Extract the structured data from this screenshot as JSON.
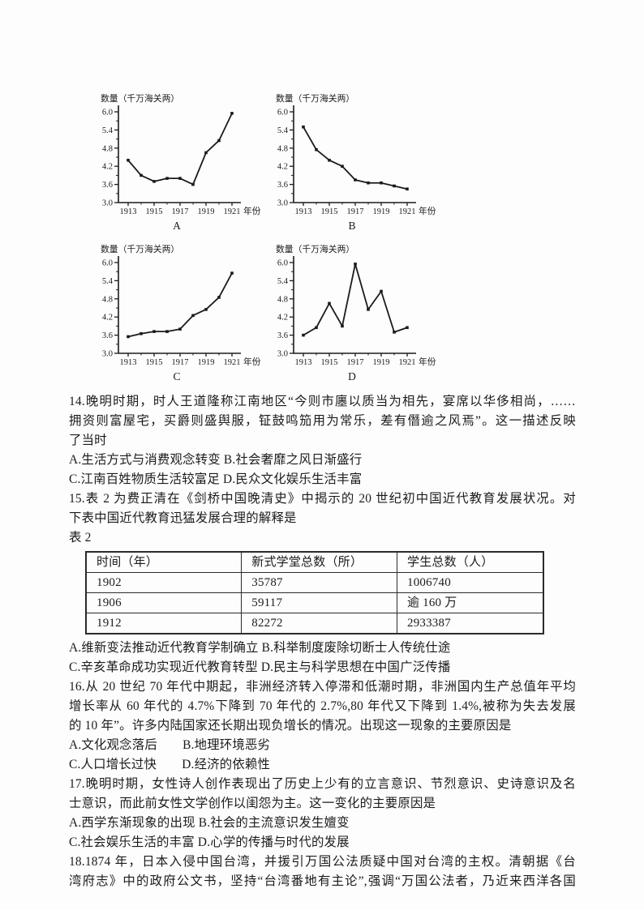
{
  "ink": "#1b1b1b",
  "page_bg": "#fdfdfd",
  "chart_data": [
    {
      "type": "line",
      "label": "A",
      "ylabel": "数量（千万海关两）",
      "xlabel": "年份",
      "x": [
        1913,
        1914,
        1915,
        1916,
        1917,
        1918,
        1919,
        1920,
        1921
      ],
      "values": [
        4.4,
        3.9,
        3.7,
        3.8,
        3.8,
        3.6,
        4.65,
        5.05,
        5.95
      ],
      "ylim": [
        3.0,
        6.0
      ],
      "yticks": [
        3.0,
        3.6,
        4.2,
        4.8,
        5.4,
        6.0
      ],
      "xticks": [
        1913,
        1915,
        1917,
        1919,
        1921
      ],
      "grid": false,
      "legend": "none"
    },
    {
      "type": "line",
      "label": "B",
      "ylabel": "数量（千万海关两）",
      "xlabel": "年份",
      "x": [
        1913,
        1914,
        1915,
        1916,
        1917,
        1918,
        1919,
        1920,
        1921
      ],
      "values": [
        5.5,
        4.75,
        4.4,
        4.2,
        3.75,
        3.65,
        3.65,
        3.55,
        3.45
      ],
      "ylim": [
        3.0,
        6.0
      ],
      "yticks": [
        3.0,
        3.6,
        4.2,
        4.8,
        5.4,
        6.0
      ],
      "xticks": [
        1913,
        1915,
        1917,
        1919,
        1921
      ],
      "grid": false,
      "legend": "none"
    },
    {
      "type": "line",
      "label": "C",
      "ylabel": "数量（千万海关两）",
      "xlabel": "年份",
      "x": [
        1913,
        1914,
        1915,
        1916,
        1917,
        1918,
        1919,
        1920,
        1921
      ],
      "values": [
        3.55,
        3.65,
        3.72,
        3.72,
        3.8,
        4.25,
        4.45,
        4.85,
        5.65
      ],
      "ylim": [
        3.0,
        6.0
      ],
      "yticks": [
        3.0,
        3.6,
        4.2,
        4.8,
        5.4,
        6.0
      ],
      "xticks": [
        1913,
        1915,
        1917,
        1919,
        1921
      ],
      "grid": false,
      "legend": "none"
    },
    {
      "type": "line",
      "label": "D",
      "ylabel": "数量（千万海关两）",
      "xlabel": "年份",
      "x": [
        1913,
        1914,
        1915,
        1916,
        1917,
        1918,
        1919,
        1920,
        1921
      ],
      "values": [
        3.6,
        3.85,
        4.65,
        3.9,
        5.95,
        4.45,
        5.05,
        3.7,
        3.85
      ],
      "ylim": [
        3.0,
        6.0
      ],
      "yticks": [
        3.0,
        3.6,
        4.2,
        4.8,
        5.4,
        6.0
      ],
      "xticks": [
        1913,
        1915,
        1917,
        1919,
        1921
      ],
      "grid": false,
      "legend": "none"
    }
  ],
  "questions": {
    "q14": {
      "stem": [
        "14.晚明时期，时人王道隆称江南地区“今则市廛以质当为相先，宴席以华侈相尚，……",
        "拥资则富屋宅，买爵则盛舆服，钲鼓鸣笳用为常乐，差有僭逾之风焉”。这一描述反映",
        "了当时"
      ],
      "options": [
        "A.生活方式与消费观念转变 B.社会奢靡之风日渐盛行",
        "C.江南百姓物质生活较富足 D.民众文化娱乐生活丰富"
      ]
    },
    "q15": {
      "stem": [
        "15.表 2 为费正清在《剑桥中国晚清史》中揭示的 20 世纪初中国近代教育发展状况。对",
        "下表中国近代教育迅猛发展合理的解释是"
      ],
      "table_caption": "表 2",
      "options": [
        "A.维新变法推动近代教育学制确立 B.科举制度废除切断士人传统仕途",
        "C.辛亥革命成功实现近代教育转型 D.民主与科学思想在中国广泛传播"
      ]
    },
    "q16": {
      "stem": [
        "16.从 20 世纪 70 年代中期起，非洲经济转入停滞和低潮时期，非洲国内生产总值年平均",
        "增长率从 60 年代的 4.7%下降到 70 年代的 2.7%,80 年代又下降到 1.4%,被称为失去发展",
        "的 10 年”。许多内陆国家还长期出现负增长的情况。出现这一现象的主要原因是"
      ],
      "options": [
        "A.文化观念落后　　B.地理环境恶劣",
        "C.人口增长过快　　D.经济的依赖性"
      ]
    },
    "q17": {
      "stem": [
        "17.晚明时期，女性诗人创作表现出了历史上少有的立言意识、节烈意识、史诗意识及名",
        "士意识，而此前女性文学创作以闺怨为主。这一变化的主要原因是"
      ],
      "options": [
        "A.西学东渐现象的出现 B.社会的主流意识发生嬗变",
        "C.社会娱乐生活的丰富 D.心学的传播与时代的发展"
      ]
    },
    "q18": {
      "stem": [
        "18.1874 年，日本入侵中国台湾，并援引万国公法质疑中国对台湾的主权。清朝据《台",
        "湾府志》中的政府公文书，坚持“台湾番地有主论”,强调“万国公法者，乃近来西洋各国"
      ]
    }
  },
  "table2": {
    "headers": [
      "时间（年）",
      "新式学堂总数（所）",
      "学生总数（人）"
    ],
    "rows": [
      [
        "1902",
        "35787",
        "1006740"
      ],
      [
        "1906",
        "59117",
        "逾 160 万"
      ],
      [
        "1912",
        "82272",
        "2933387"
      ]
    ]
  }
}
